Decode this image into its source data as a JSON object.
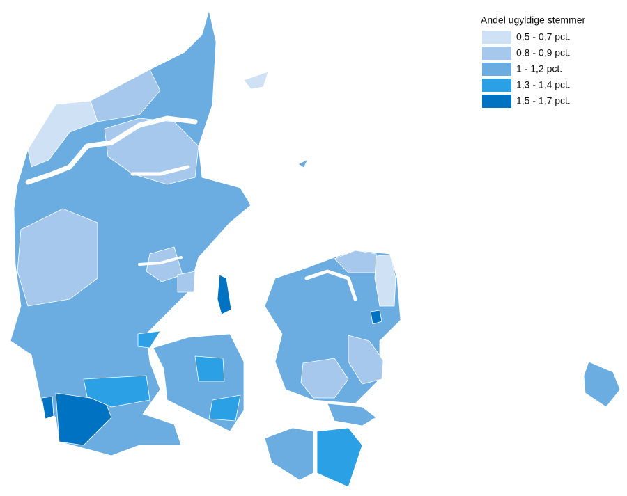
{
  "legend": {
    "title": "Andel ugyldige stemmer",
    "items": [
      {
        "label": "0,5 - 0,7 pct.",
        "color": "#cfe1f5"
      },
      {
        "label": "0.8 - 0,9 pct.",
        "color": "#a6c8ec"
      },
      {
        "label": "1 - 1,2 pct.",
        "color": "#6badE1"
      },
      {
        "label": "1,3 - 1,4 pct.",
        "color": "#2ba0e4"
      },
      {
        "label": "1,5 - 1,7 pct.",
        "color": "#0072c2"
      }
    ]
  }
}
